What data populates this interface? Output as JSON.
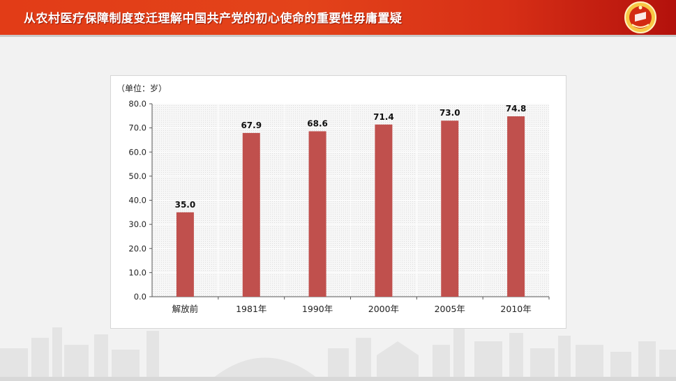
{
  "header": {
    "title": "从农村医疗保障制度变迁理解中国共产党的初心使命的重要性毋庸置疑"
  },
  "colors": {
    "header_red": "#e23c17",
    "bar_red": "#c0504d",
    "background": "#f2f2f2"
  },
  "icons": {
    "emblem": "youth-league-emblem-icon",
    "skyline": "city-skyline-illustration"
  },
  "chart_data": {
    "type": "bar",
    "unit_label": "（单位：岁）",
    "categories": [
      "解放前",
      "1981年",
      "1990年",
      "2000年",
      "2005年",
      "2010年"
    ],
    "values": [
      35.0,
      67.9,
      68.6,
      71.4,
      73.0,
      74.8
    ],
    "value_labels": [
      "35.0",
      "67.9",
      "68.6",
      "71.4",
      "73.0",
      "74.8"
    ],
    "y_ticks": [
      "0.0",
      "10.0",
      "20.0",
      "30.0",
      "40.0",
      "50.0",
      "60.0",
      "70.0",
      "80.0"
    ],
    "ylim": [
      0,
      80
    ],
    "grid": true,
    "legend": "none"
  }
}
